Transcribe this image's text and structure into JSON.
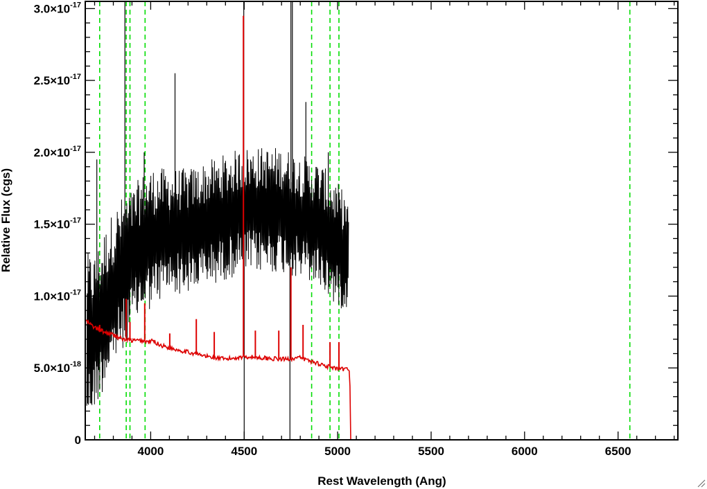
{
  "chart_data": {
    "type": "line",
    "title": "",
    "xlabel": "Rest Wavelength (Ang)",
    "ylabel": "Relative Flux (cgs)",
    "xlim": [
      3650,
      6820
    ],
    "ylim": [
      0,
      3.05e-17
    ],
    "x_ticks": [
      {
        "value": 4000,
        "label": "4000"
      },
      {
        "value": 4500,
        "label": "4500"
      },
      {
        "value": 5000,
        "label": "5000"
      },
      {
        "value": 5500,
        "label": "5500"
      },
      {
        "value": 6000,
        "label": "6000"
      },
      {
        "value": 6500,
        "label": "6500"
      }
    ],
    "y_ticks": [
      {
        "value": 0,
        "mantissa": "0",
        "exponent": ""
      },
      {
        "value": 5e-18,
        "mantissa": "5.0×10",
        "exponent": "-18"
      },
      {
        "value": 1e-17,
        "mantissa": "1.0×10",
        "exponent": "-17"
      },
      {
        "value": 1.5e-17,
        "mantissa": "1.5×10",
        "exponent": "-17"
      },
      {
        "value": 2e-17,
        "mantissa": "2.0×10",
        "exponent": "-17"
      },
      {
        "value": 2.5e-17,
        "mantissa": "2.5×10",
        "exponent": "-17"
      },
      {
        "value": 3e-17,
        "mantissa": "3.0×10",
        "exponent": "-17"
      }
    ],
    "grid": false,
    "colors": {
      "observed": "#000000",
      "model": "#dd0000",
      "lines": "#00dd00"
    },
    "series": [
      {
        "key": "observed",
        "style": "noisy",
        "envelope_x": [
          3660,
          3700,
          3750,
          3800,
          3850,
          3900,
          3950,
          4000,
          4100,
          4200,
          4300,
          4400,
          4500,
          4600,
          4700,
          4800,
          4900,
          5000,
          5060
        ],
        "envelope_mean": [
          7e-18,
          7.5e-18,
          9e-18,
          1.05e-17,
          1.15e-17,
          1.25e-17,
          1.35e-17,
          1.4e-17,
          1.45e-17,
          1.45e-17,
          1.5e-17,
          1.55e-17,
          1.6e-17,
          1.6e-17,
          1.6e-17,
          1.55e-17,
          1.5e-17,
          1.35e-17,
          1.3e-17
        ],
        "envelope_amplitude": [
          5.5e-18,
          5e-18,
          5e-18,
          5e-18,
          5e-18,
          4.5e-18,
          4.5e-18,
          4.5e-18,
          4e-18,
          4e-18,
          4e-18,
          4e-18,
          4e-18,
          4e-18,
          4e-18,
          4e-18,
          4e-18,
          4e-18,
          3.5e-18
        ],
        "step": 2.3,
        "end_x": 5060,
        "spikes": [
          {
            "x": 3712,
            "y": 1.95e-17
          },
          {
            "x": 3862,
            "y": 3.05e-17
          },
          {
            "x": 3965,
            "y": 2e-17
          },
          {
            "x": 4130,
            "y": 2.55e-17
          },
          {
            "x": 4498,
            "y": 3.05e-17
          },
          {
            "x": 4500,
            "y": 0
          },
          {
            "x": 4745,
            "y": 0
          },
          {
            "x": 4750,
            "y": 3.05e-17
          },
          {
            "x": 4758,
            "y": 3.05e-17
          },
          {
            "x": 4830,
            "y": 2.35e-17
          },
          {
            "x": 4950,
            "y": 2e-17
          }
        ]
      },
      {
        "key": "model",
        "style": "smooth",
        "x": [
          3650,
          3700,
          3750,
          3800,
          3850,
          3900,
          3950,
          3990,
          4010,
          4050,
          4100,
          4200,
          4300,
          4400,
          4500,
          4600,
          4700,
          4800,
          4900,
          4950,
          5000,
          5050,
          5065,
          5070,
          6820
        ],
        "y": [
          8.3e-18,
          7.8e-18,
          7.5e-18,
          7.3e-18,
          7e-18,
          6.9e-18,
          6.9e-18,
          6.8e-18,
          6.9e-18,
          6.6e-18,
          6.4e-18,
          6.1e-18,
          5.8e-18,
          5.6e-18,
          5.8e-18,
          5.7e-18,
          5.6e-18,
          5.7e-18,
          5.3e-18,
          5.1e-18,
          4.9e-18,
          4.9e-18,
          4.8e-18,
          0,
          0
        ],
        "lines": [
          {
            "x": 3727,
            "y": 8e-18
          },
          {
            "x": 3869,
            "y": 9.8e-18
          },
          {
            "x": 3889,
            "y": 8.2e-18
          },
          {
            "x": 3968,
            "y": 9.5e-18
          },
          {
            "x": 4102,
            "y": 7.4e-18
          },
          {
            "x": 4244,
            "y": 8.4e-18
          },
          {
            "x": 4340,
            "y": 7.5e-18
          },
          {
            "x": 4496,
            "y": 2.95e-17
          },
          {
            "x": 4560,
            "y": 7.6e-18
          },
          {
            "x": 4685,
            "y": 7.6e-18
          },
          {
            "x": 4750,
            "y": 1.2e-17
          },
          {
            "x": 4815,
            "y": 8e-18
          },
          {
            "x": 4959,
            "y": 6.8e-18
          },
          {
            "x": 5007,
            "y": 6.8e-18
          }
        ]
      }
    ],
    "vertical_markers": [
      3727,
      3869,
      3889,
      3970,
      4861,
      4959,
      5007,
      6563
    ]
  }
}
